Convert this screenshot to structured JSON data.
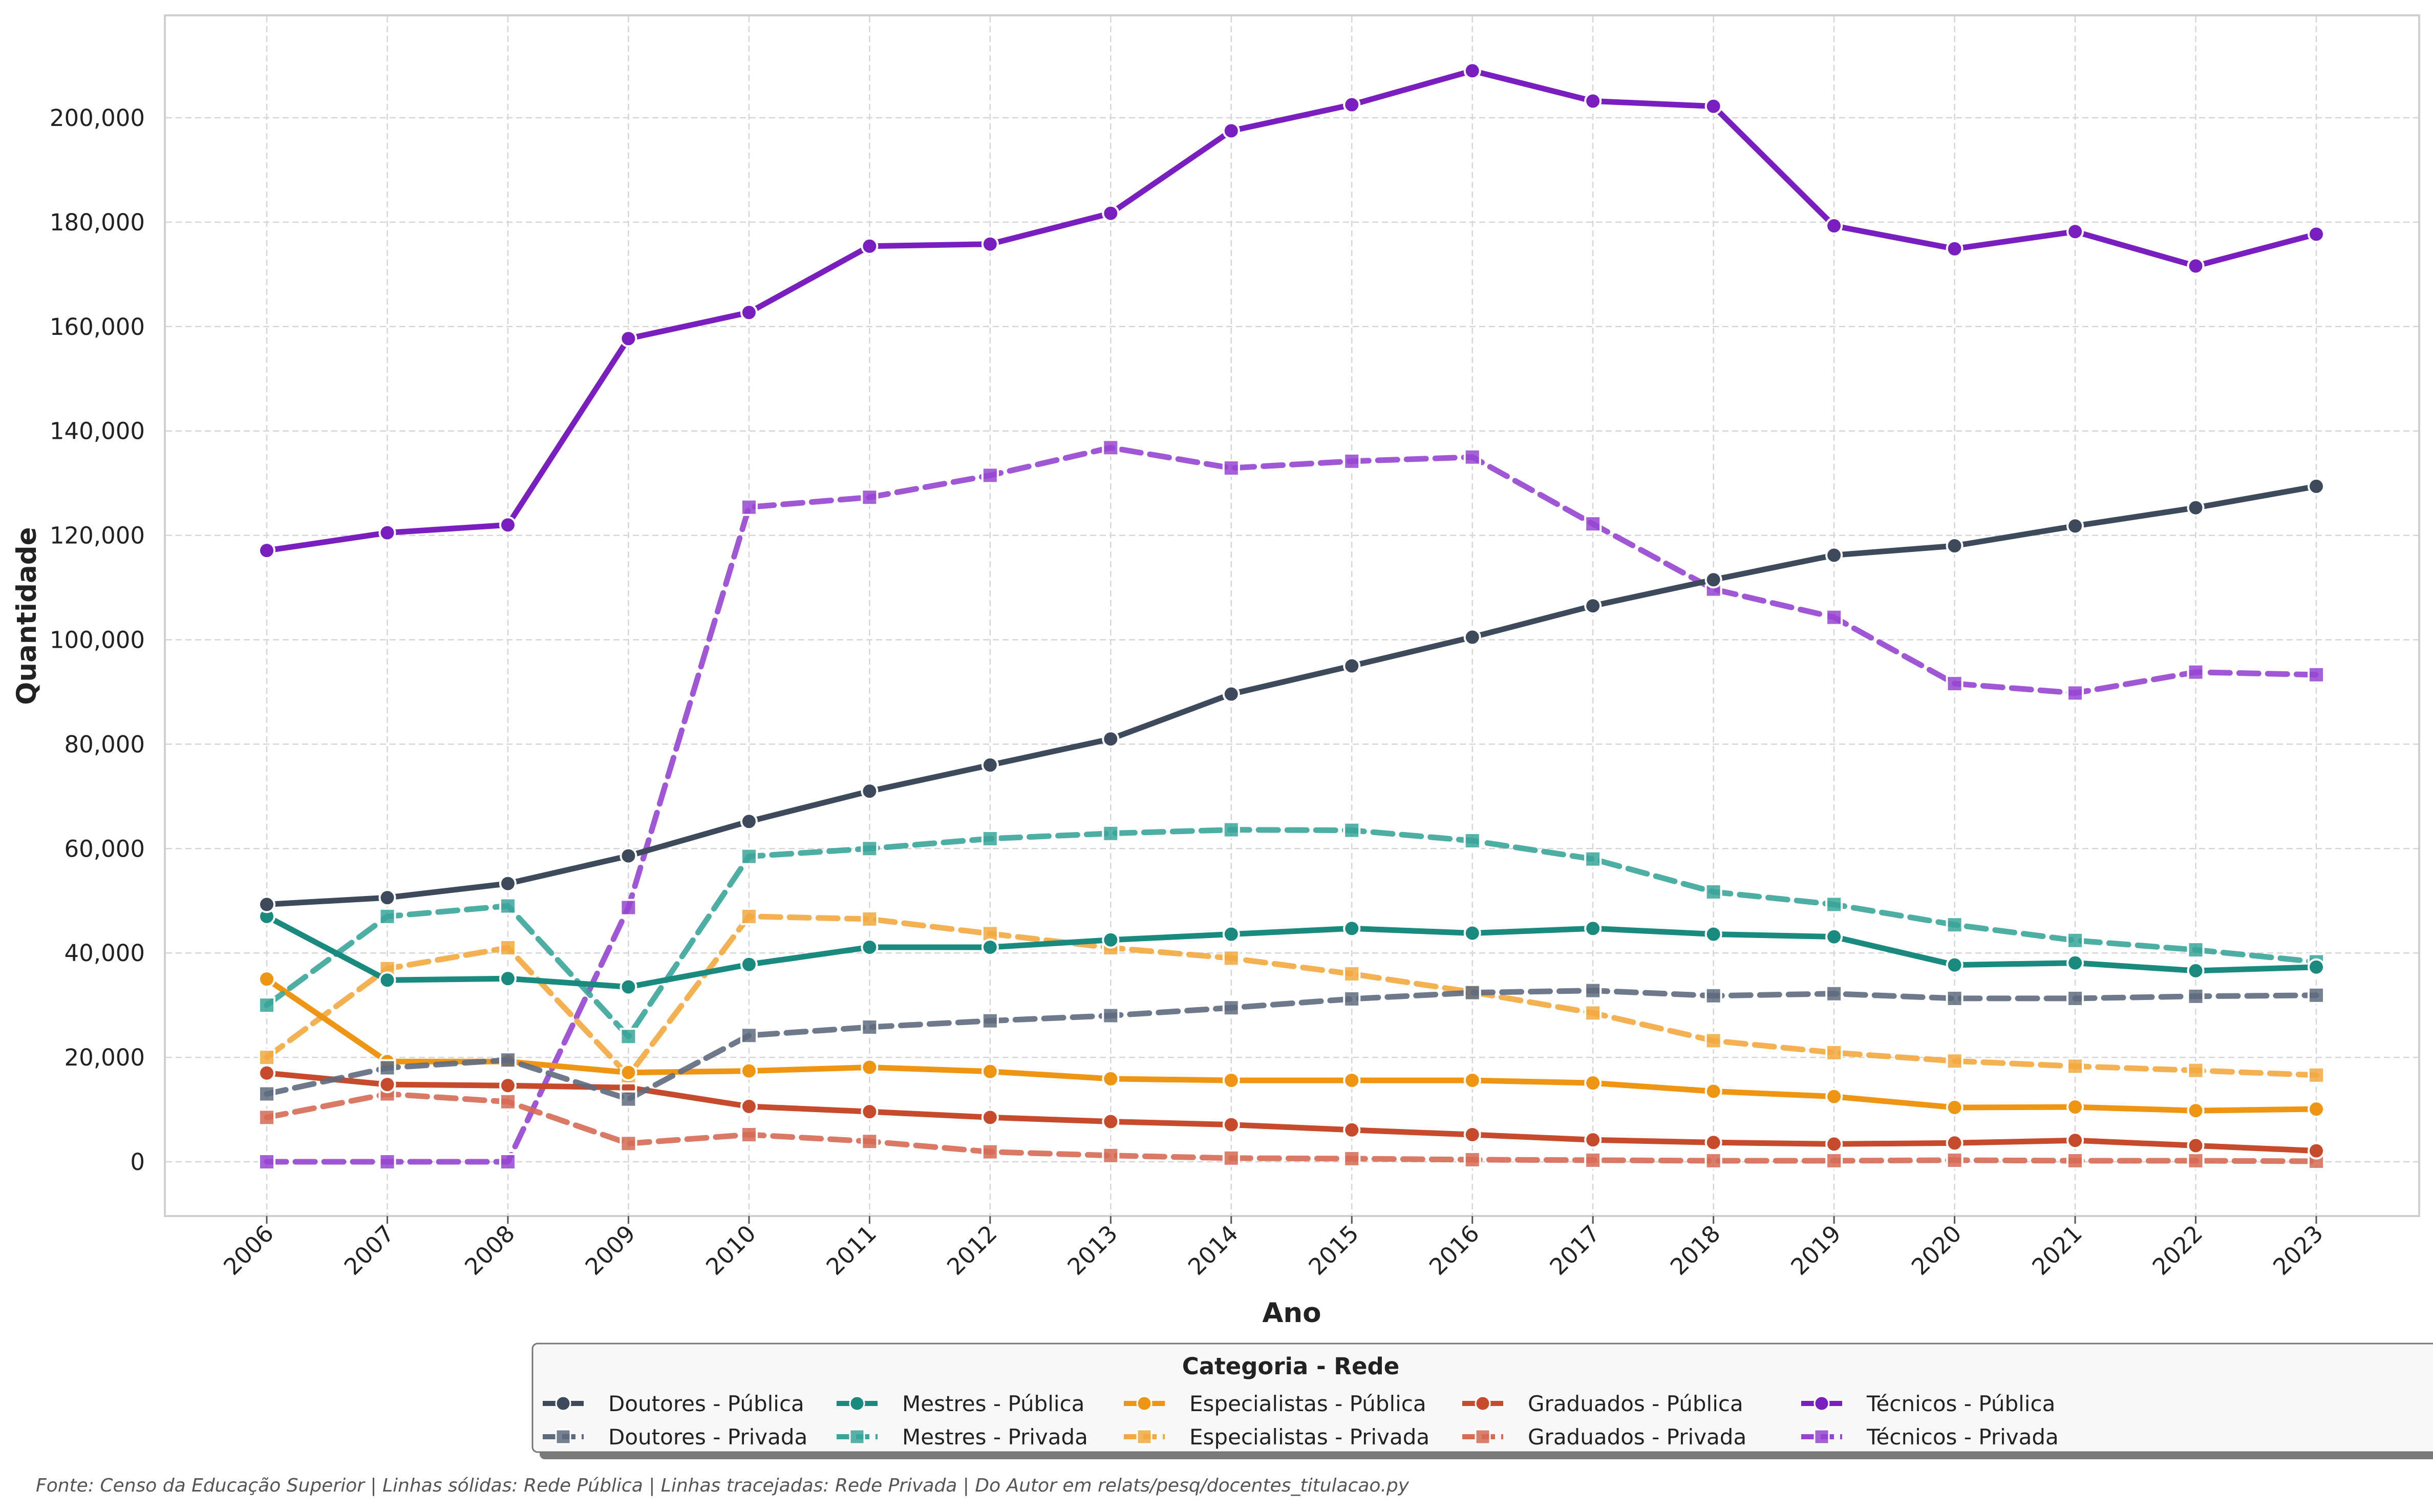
{
  "chart_data": {
    "type": "line",
    "xlabel": "Ano",
    "ylabel": "Quantidade",
    "x": [
      "2006",
      "2007",
      "2008",
      "2009",
      "2010",
      "2011",
      "2012",
      "2013",
      "2014",
      "2015",
      "2016",
      "2017",
      "2018",
      "2019",
      "2020",
      "2021",
      "2022",
      "2023"
    ],
    "ylim": [
      -10000,
      219000
    ],
    "yticks": [
      "0",
      "20,000",
      "40,000",
      "60,000",
      "80,000",
      "100,000",
      "120,000",
      "140,000",
      "160,000",
      "180,000",
      "200,000"
    ],
    "ytick_values": [
      0,
      20000,
      40000,
      60000,
      80000,
      100000,
      120000,
      140000,
      160000,
      180000,
      200000
    ],
    "grid": true,
    "legend": {
      "title": "Categoria - Rede",
      "placement": "bottom-center"
    },
    "series": [
      {
        "name": "Doutores - Pública",
        "color": "#3d4a5c",
        "style": "solid",
        "marker": "circle",
        "values": [
          49300,
          50600,
          53300,
          58600,
          65200,
          71000,
          76000,
          81000,
          89600,
          95000,
          100500,
          106500,
          111500,
          116200,
          118000,
          121800,
          125300,
          129400
        ]
      },
      {
        "name": "Doutores - Privada",
        "color": "#5e6b7e",
        "style": "dashed",
        "marker": "square",
        "values": [
          13000,
          18000,
          19500,
          12000,
          24200,
          25800,
          27000,
          28000,
          29500,
          31200,
          32400,
          32800,
          31800,
          32200,
          31300,
          31300,
          31700,
          31900
        ]
      },
      {
        "name": "Mestres - Pública",
        "color": "#1a8a7e",
        "style": "solid",
        "marker": "circle",
        "values": [
          47000,
          34800,
          35100,
          33500,
          37800,
          41100,
          41100,
          42500,
          43600,
          44700,
          43800,
          44700,
          43600,
          43100,
          37700,
          38100,
          36600,
          37300
        ]
      },
      {
        "name": "Mestres - Privada",
        "color": "#3aa59a",
        "style": "dashed",
        "marker": "square",
        "values": [
          30000,
          47000,
          49000,
          24000,
          58500,
          60000,
          61900,
          62900,
          63600,
          63500,
          61500,
          58000,
          51700,
          49300,
          45400,
          42400,
          40600,
          38300
        ]
      },
      {
        "name": "Especialistas - Pública",
        "color": "#ee9614",
        "style": "solid",
        "marker": "circle",
        "values": [
          35000,
          19200,
          19200,
          17100,
          17400,
          18100,
          17300,
          15900,
          15600,
          15600,
          15600,
          15100,
          13500,
          12500,
          10400,
          10500,
          9800,
          10100
        ]
      },
      {
        "name": "Especialistas - Privada",
        "color": "#f2a93f",
        "style": "dashed",
        "marker": "square",
        "values": [
          20000,
          37000,
          41000,
          16500,
          47000,
          46500,
          43700,
          41000,
          39000,
          36000,
          32500,
          28500,
          23200,
          20900,
          19300,
          18300,
          17500,
          16600
        ]
      },
      {
        "name": "Graduados - Pública",
        "color": "#c64a2c",
        "style": "solid",
        "marker": "circle",
        "values": [
          17000,
          14800,
          14600,
          14200,
          10600,
          9600,
          8500,
          7700,
          7100,
          6100,
          5200,
          4200,
          3700,
          3400,
          3600,
          4100,
          3100,
          2100
        ]
      },
      {
        "name": "Graduados - Privada",
        "color": "#d66a55",
        "style": "dashed",
        "marker": "square",
        "values": [
          8500,
          13000,
          11500,
          3500,
          5200,
          3900,
          1900,
          1200,
          700,
          600,
          400,
          300,
          200,
          200,
          300,
          200,
          200,
          100
        ]
      },
      {
        "name": "Técnicos - Pública",
        "color": "#7a1fbf",
        "style": "solid",
        "marker": "circle",
        "values": [
          117100,
          120500,
          122000,
          157700,
          162700,
          175400,
          175800,
          181700,
          197500,
          202500,
          209000,
          203200,
          202200,
          179300,
          174900,
          178200,
          171600,
          177700
        ]
      },
      {
        "name": "Técnicos - Privada",
        "color": "#9645d2",
        "style": "dashed",
        "marker": "square",
        "values": [
          0,
          0,
          0,
          48700,
          125400,
          127300,
          131500,
          136800,
          132900,
          134200,
          135000,
          122200,
          109700,
          104300,
          91600,
          89800,
          93800,
          93300
        ]
      }
    ]
  },
  "caption": "Fonte: Censo da Educação Superior | Linhas sólidas: Rede Pública | Linhas tracejadas: Rede Privada | Do Autor em relats/pesq/docentes_titulacao.py"
}
